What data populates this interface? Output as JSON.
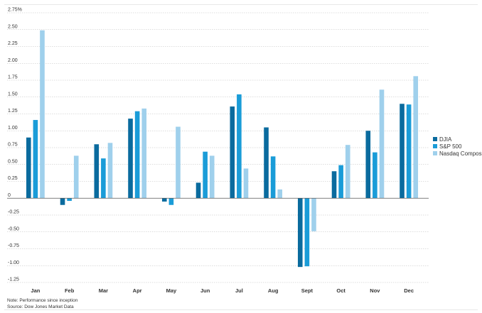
{
  "chart_data": {
    "type": "bar",
    "categories": [
      "Jan",
      "Feb",
      "Mar",
      "Apr",
      "May",
      "Jun",
      "Jul",
      "Aug",
      "Sept",
      "Oct",
      "Nov",
      "Dec"
    ],
    "series": [
      {
        "name": "DJIA",
        "color": "#0a6b9e",
        "values": [
          0.9,
          -0.1,
          0.8,
          1.18,
          -0.05,
          0.23,
          1.36,
          1.05,
          -1.02,
          0.4,
          1.0,
          1.4
        ]
      },
      {
        "name": "S&P 500",
        "color": "#1a9cd8",
        "values": [
          1.16,
          -0.04,
          0.59,
          1.29,
          -0.1,
          0.69,
          1.54,
          0.62,
          -1.01,
          0.49,
          0.68,
          1.39
        ]
      },
      {
        "name": "Nasdaq Composit",
        "color": "#9fd0ec",
        "values": [
          2.49,
          0.63,
          0.82,
          1.33,
          1.06,
          0.63,
          0.44,
          0.13,
          -0.49,
          0.79,
          1.61,
          1.81
        ]
      }
    ],
    "yticks": [
      "2.75%",
      "2.50",
      "2.25",
      "2.00",
      "1.75",
      "1.50",
      "1.25",
      "1.00",
      "0.75",
      "0.50",
      "0.25",
      "0",
      "-0.25",
      "-0.50",
      "-0.75",
      "-1.00",
      "-1.25"
    ],
    "ylim": [
      -1.25,
      2.75
    ],
    "grid": true,
    "legend_position": "right"
  },
  "notes": {
    "note": "Note: Performance since inception",
    "source": "Source: Dow Jones Market Data"
  }
}
